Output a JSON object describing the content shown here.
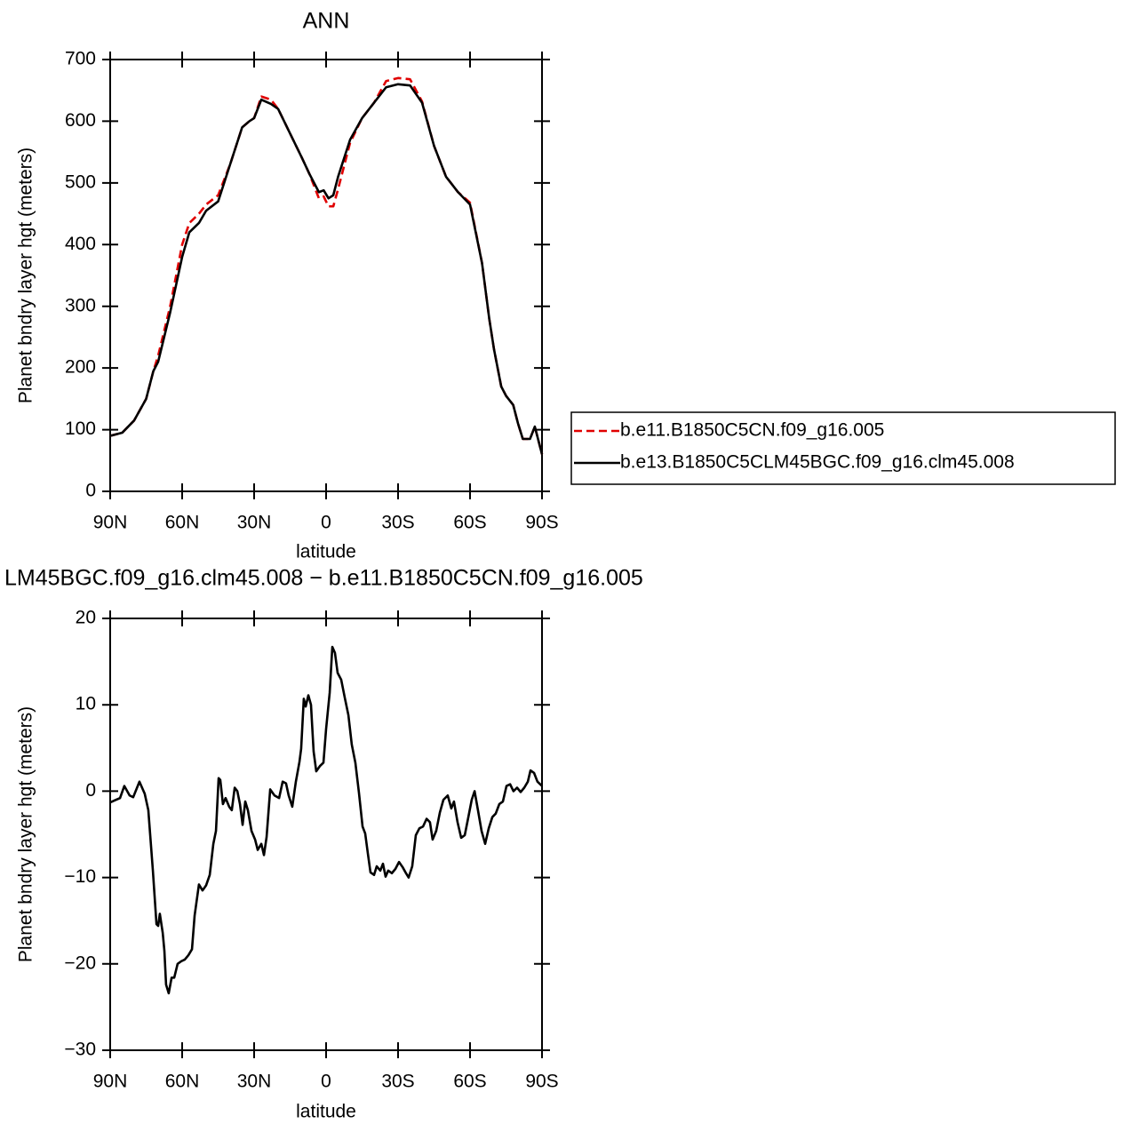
{
  "chart_data": [
    {
      "type": "line",
      "title": "ANN",
      "xlabel": "latitude",
      "ylabel": "Planet bndry layer hgt (meters)",
      "xlim": [
        90,
        -90
      ],
      "xticks": [
        {
          "value": 90,
          "label": "90N"
        },
        {
          "value": 60,
          "label": "60N"
        },
        {
          "value": 30,
          "label": "30N"
        },
        0,
        {
          "value": -30,
          "label": "30S"
        },
        {
          "value": -60,
          "label": "60S"
        },
        {
          "value": -90,
          "label": "90S"
        }
      ],
      "ylim": [
        0,
        700
      ],
      "yticks": [
        0,
        100,
        200,
        300,
        400,
        500,
        600,
        700
      ],
      "x": [
        90,
        85,
        80,
        75,
        72,
        70,
        65,
        60,
        57,
        53,
        50,
        45,
        40,
        35,
        32,
        30,
        27,
        23,
        20,
        15,
        10,
        7,
        5,
        3,
        1,
        -1,
        -3,
        -5,
        -10,
        -15,
        -20,
        -25,
        -30,
        -35,
        -40,
        -45,
        -50,
        -55,
        -60,
        -65,
        -68,
        -70,
        -73,
        -75,
        -78,
        -80,
        -82,
        -85,
        -87,
        -90
      ],
      "legend": "right",
      "series": [
        {
          "name": "b.e11.B1850C5CN.f09_g16.005",
          "color": "#e00000",
          "linestyle": "dashed",
          "values": [
            90,
            95,
            115,
            150,
            195,
            220,
            300,
            400,
            435,
            450,
            465,
            480,
            530,
            590,
            600,
            605,
            640,
            635,
            620,
            580,
            540,
            515,
            495,
            475,
            478,
            462,
            462,
            490,
            565,
            605,
            630,
            665,
            670,
            668,
            632,
            560,
            510,
            485,
            468,
            370,
            280,
            230,
            170,
            155,
            140,
            110,
            85,
            85,
            105,
            60
          ]
        },
        {
          "name": "b.e13.B1850C5CLM45BGC.f09_g16.clm45.008",
          "color": "#000000",
          "linestyle": "solid",
          "values": [
            90,
            95,
            115,
            150,
            195,
            210,
            290,
            380,
            420,
            435,
            455,
            470,
            530,
            590,
            600,
            605,
            635,
            628,
            620,
            580,
            540,
            515,
            500,
            485,
            488,
            475,
            480,
            510,
            570,
            605,
            630,
            655,
            660,
            658,
            630,
            560,
            510,
            485,
            465,
            370,
            280,
            230,
            170,
            155,
            140,
            110,
            85,
            85,
            105,
            60
          ]
        }
      ]
    },
    {
      "type": "line",
      "title": "LM45BGC.f09_g16.clm45.008 − b.e11.B1850C5CN.f09_g16.005",
      "xlabel": "latitude",
      "ylabel": "Planet bndry layer hgt (meters)",
      "xlim": [
        90,
        -90
      ],
      "xticks": [
        {
          "value": 90,
          "label": "90N"
        },
        {
          "value": 60,
          "label": "60N"
        },
        {
          "value": 30,
          "label": "30N"
        },
        0,
        {
          "value": -30,
          "label": "30S"
        },
        {
          "value": -60,
          "label": "60S"
        },
        {
          "value": -90,
          "label": "90S"
        }
      ],
      "ylim": [
        -30,
        20
      ],
      "yticks": [
        {
          "value": -30,
          "label": "−30"
        },
        {
          "value": -20,
          "label": "−20"
        },
        {
          "value": -10,
          "label": "−10"
        },
        0,
        10,
        20
      ],
      "x": [
        90,
        85.9,
        84.1,
        81.9,
        80.4,
        77.8,
        75.6,
        74.1,
        72.2,
        70.7,
        70,
        69.3,
        68.1,
        67.4,
        66.7,
        65.6,
        64.4,
        63.3,
        61.9,
        60.4,
        58.9,
        57.4,
        55.9,
        54.8,
        53,
        51.5,
        50,
        48.5,
        47,
        45.9,
        44.8,
        44.1,
        43,
        41.9,
        40.4,
        39.3,
        38.1,
        37,
        35.9,
        34.8,
        33.7,
        32.6,
        31.1,
        29.6,
        28.5,
        27,
        25.9,
        24.8,
        23.3,
        21.5,
        19.6,
        18.1,
        16.7,
        15.6,
        14.1,
        12.6,
        11.1,
        10.4,
        9.3,
        8.5,
        7.4,
        6.3,
        5.2,
        4.1,
        2.6,
        1.1,
        0,
        -1.5,
        -2.6,
        -3.7,
        -4.8,
        -6.3,
        -7.8,
        -9.3,
        -10.7,
        -12.2,
        -13.7,
        -15.2,
        -16.3,
        -17.4,
        -18.5,
        -20,
        -21.1,
        -22.6,
        -23.7,
        -24.8,
        -25.9,
        -27.4,
        -28.9,
        -30.4,
        -31.9,
        -33.3,
        -34.4,
        -35.9,
        -37.4,
        -38.9,
        -40.4,
        -41.9,
        -43.3,
        -44.4,
        -45.9,
        -47.4,
        -48.9,
        -50.7,
        -52.2,
        -53.3,
        -54.8,
        -56.3,
        -57.8,
        -59.3,
        -60.7,
        -61.9,
        -63.3,
        -64.8,
        -66.3,
        -67.8,
        -69.3,
        -70.7,
        -72.2,
        -73.7,
        -75.2,
        -76.7,
        -78.1,
        -79.6,
        -81.1,
        -82.6,
        -84.1,
        -85.2,
        -86.7,
        -88.1,
        -90
      ],
      "series": [
        {
          "color": "#000000",
          "linestyle": "solid",
          "values": [
            -1.3,
            -0.8,
            0.6,
            -0.5,
            -0.7,
            1.1,
            -0.3,
            -2.2,
            -9.2,
            -15.4,
            -15.6,
            -14.2,
            -16.4,
            -18.5,
            -22.4,
            -23.4,
            -21.6,
            -21.6,
            -20,
            -19.7,
            -19.5,
            -19,
            -18.3,
            -14.4,
            -10.8,
            -11.5,
            -10.9,
            -9.7,
            -6.1,
            -4.6,
            1.5,
            1.3,
            -1.5,
            -0.8,
            -1.8,
            -2.2,
            0.4,
            0,
            -1.5,
            -3.9,
            -1.2,
            -2.2,
            -4.6,
            -5.6,
            -6.8,
            -6.1,
            -7.4,
            -5.3,
            0.2,
            -0.5,
            -0.8,
            1.1,
            0.9,
            -0.5,
            -1.8,
            1.1,
            3.4,
            4.9,
            10.7,
            9.8,
            11.1,
            10,
            4.6,
            2.3,
            2.9,
            3.3,
            7.2,
            11.4,
            16.7,
            16,
            13.7,
            12.9,
            10.8,
            8.8,
            5.4,
            3.3,
            -0.2,
            -4.1,
            -4.9,
            -7.2,
            -9.4,
            -9.7,
            -8.7,
            -9.2,
            -8.4,
            -9.9,
            -9.2,
            -9.5,
            -9,
            -8.2,
            -8.8,
            -9.5,
            -10,
            -8.7,
            -5.1,
            -4.3,
            -4.1,
            -3.2,
            -3.6,
            -5.6,
            -4.6,
            -2.5,
            -1,
            -0.5,
            -2,
            -1.2,
            -3.6,
            -5.4,
            -5.1,
            -3,
            -1,
            0,
            -2.2,
            -4.6,
            -6.1,
            -4.3,
            -3,
            -2.6,
            -1.5,
            -1.2,
            0.6,
            0.8,
            0,
            0.4,
            -0.1,
            0.4,
            1.1,
            2.4,
            2.1,
            1.1,
            0.6
          ]
        }
      ]
    }
  ]
}
